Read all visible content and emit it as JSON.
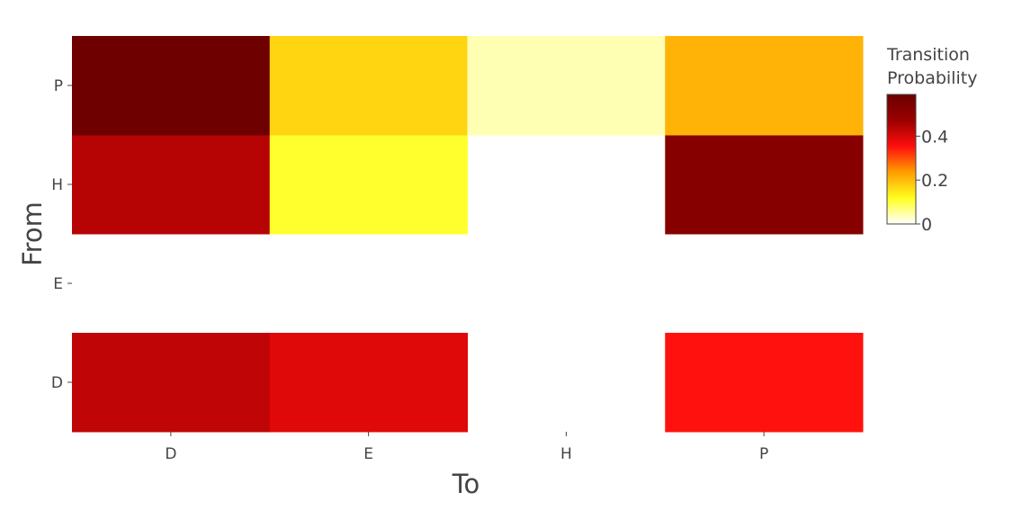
{
  "chart_data": {
    "type": "heatmap",
    "xlabel": "To",
    "ylabel": "From",
    "x_categories": [
      "D",
      "E",
      "H",
      "P"
    ],
    "y_categories": [
      "D",
      "E",
      "H",
      "P"
    ],
    "z": [
      [
        0.43,
        0.39,
        null,
        0.35
      ],
      [
        null,
        null,
        null,
        null
      ],
      [
        0.44,
        0.11,
        null,
        0.52
      ],
      [
        0.58,
        0.17,
        0.04,
        0.21
      ]
    ],
    "zlim": [
      0,
      0.59
    ],
    "colorscale": "hot-reversed",
    "colors": [
      "#ffffff",
      "#ffff1f",
      "#ff9d00",
      "#ff0d0d",
      "#9b0000",
      "#6b0000"
    ],
    "colorbar": {
      "title_lines": [
        "Transition",
        "Probability"
      ],
      "ticks": [
        0,
        0.2,
        0.4
      ],
      "tick_labels": [
        "0",
        "0.2",
        "0.4"
      ]
    }
  }
}
